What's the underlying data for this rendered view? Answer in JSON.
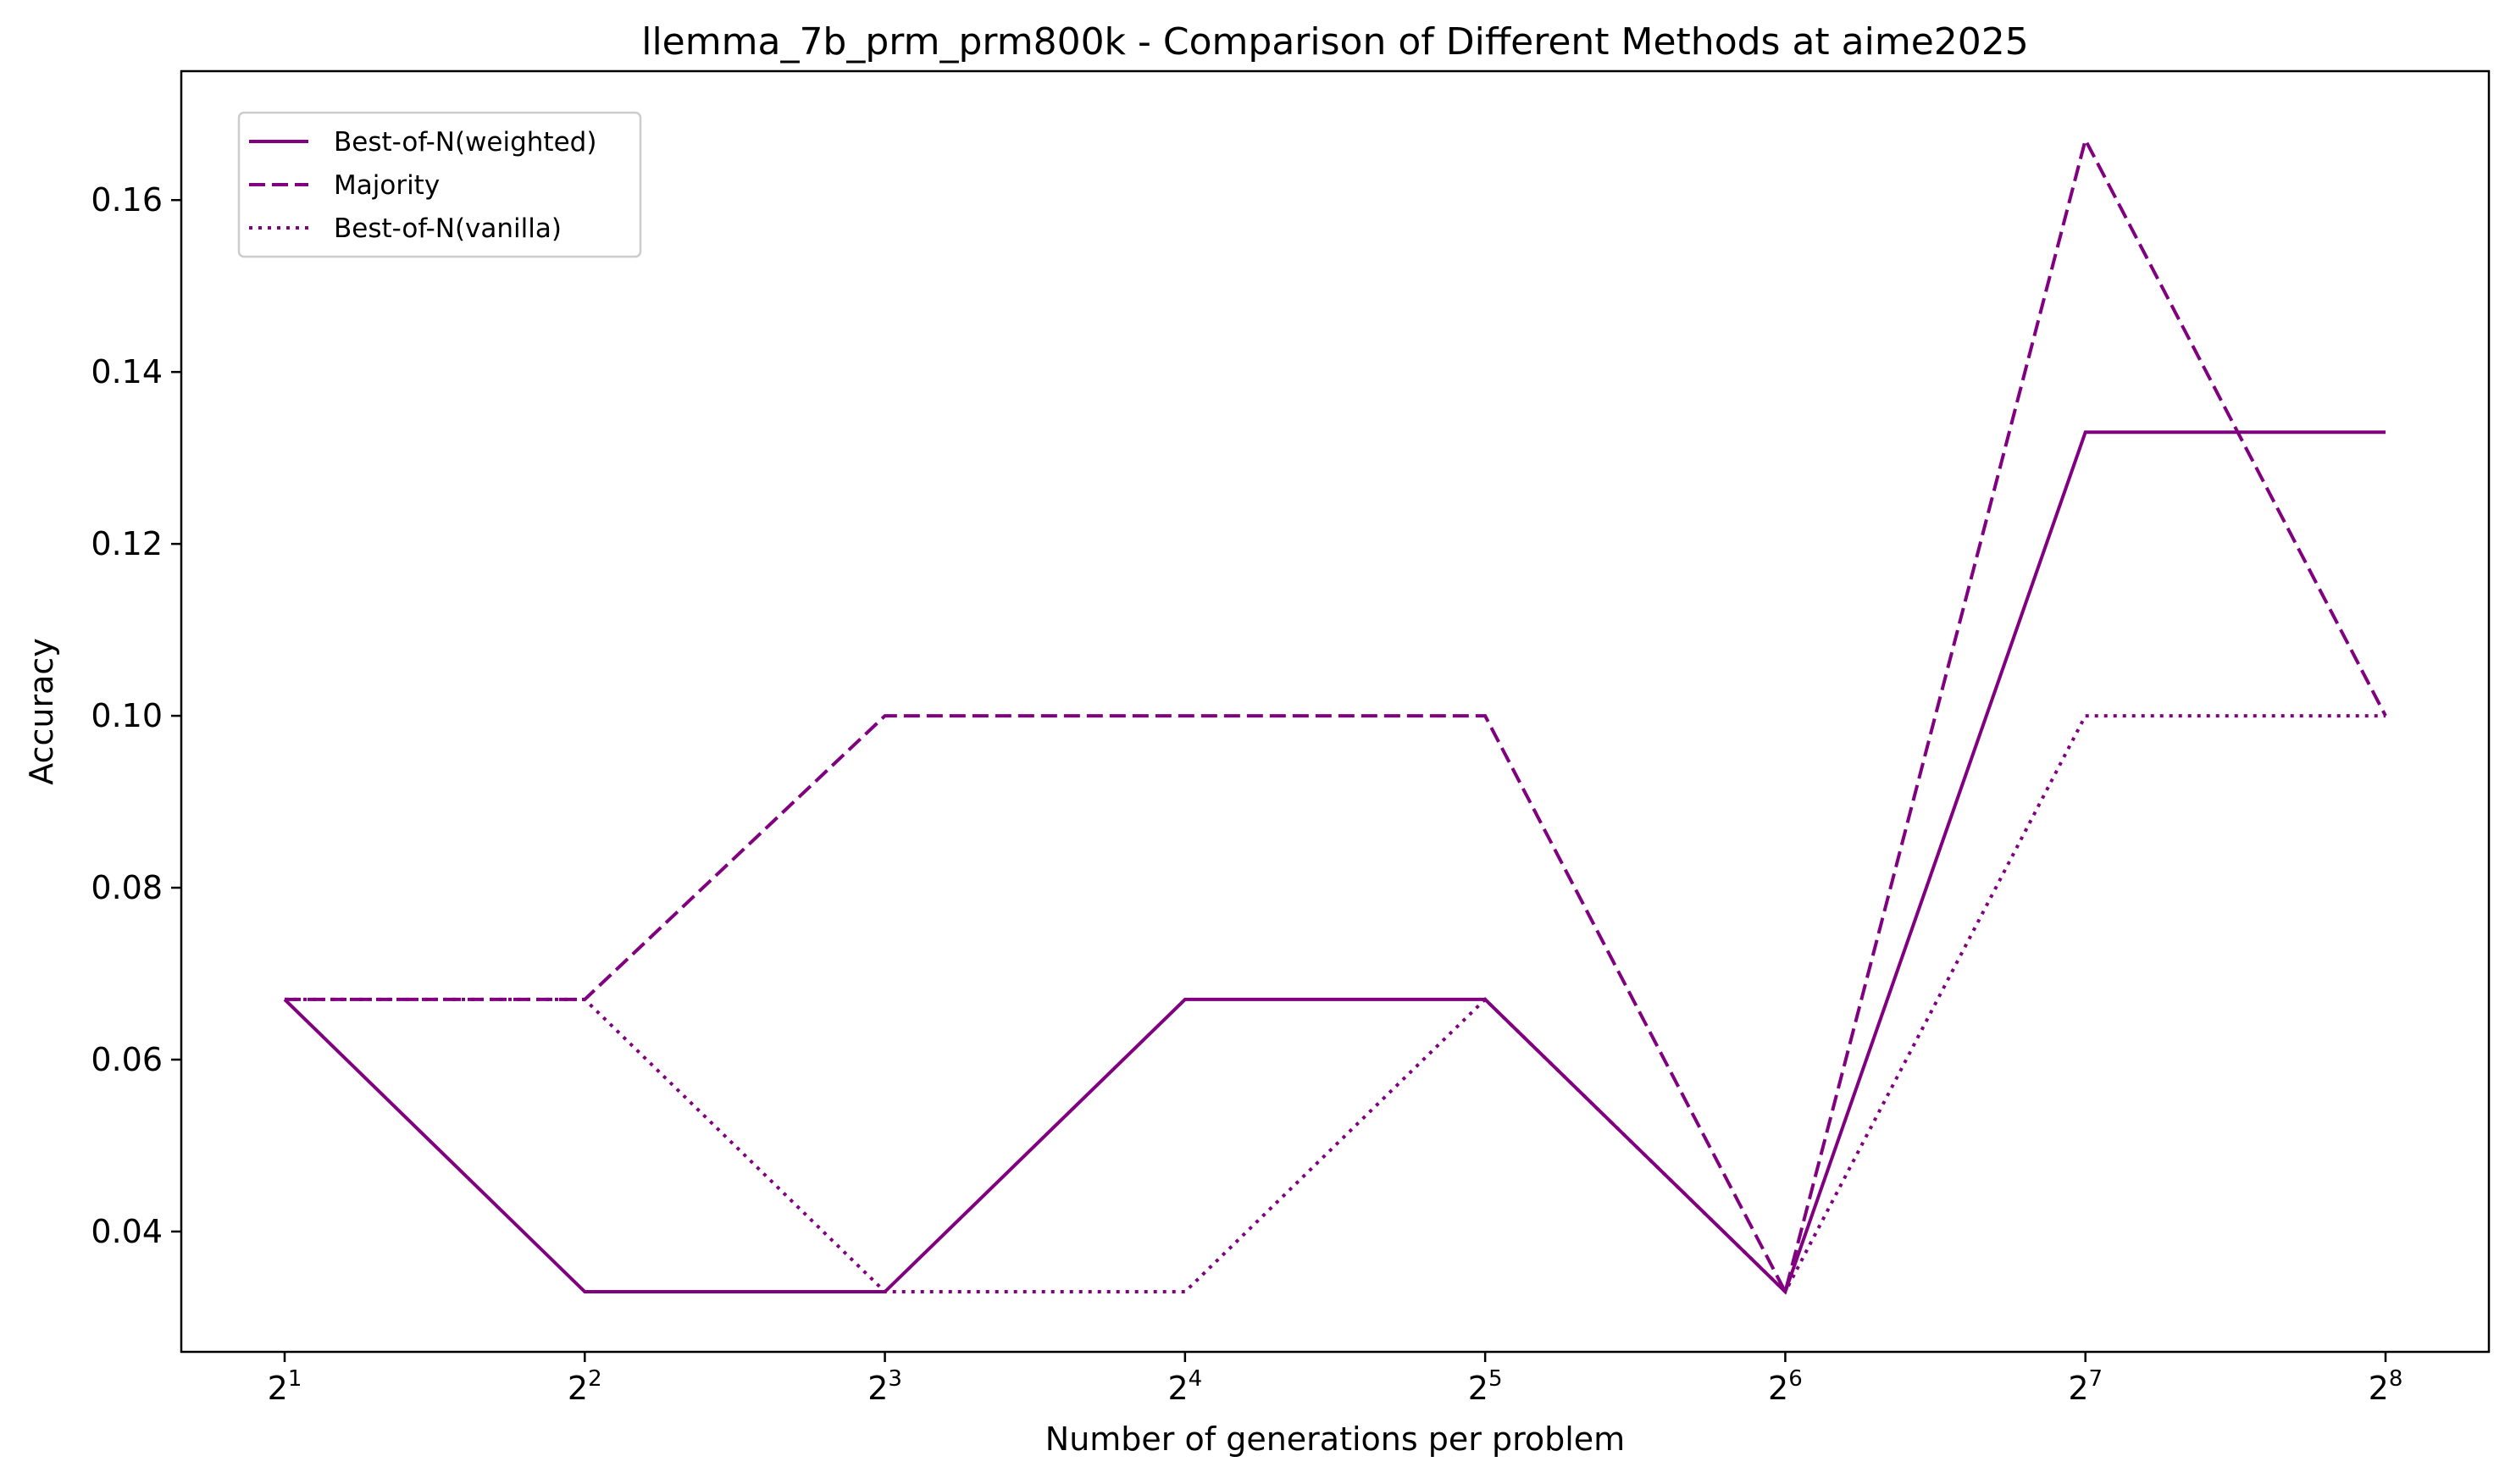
{
  "chart_data": {
    "type": "line",
    "title": "llemma_7b_prm_prm800k - Comparison of Different Methods at aime2025",
    "xlabel": "Number of generations per problem",
    "ylabel": "Accuracy",
    "x_scale": "log2",
    "x": [
      2,
      4,
      8,
      16,
      32,
      64,
      128,
      256
    ],
    "x_tick_base": "2",
    "x_tick_exponents": [
      "1",
      "2",
      "3",
      "4",
      "5",
      "6",
      "7",
      "8"
    ],
    "y_ticks": [
      "0.04",
      "0.06",
      "0.08",
      "0.10",
      "0.12",
      "0.14",
      "0.16"
    ],
    "y_tick_values": [
      0.04,
      0.06,
      0.08,
      0.1,
      0.12,
      0.14,
      0.16
    ],
    "ylim": [
      0.026,
      0.175
    ],
    "grid": false,
    "legend_position": "top-left",
    "color": "#800080",
    "series": [
      {
        "name": "Best-of-N(weighted)",
        "style": "solid",
        "values": [
          0.067,
          0.033,
          0.033,
          0.067,
          0.067,
          0.033,
          0.133,
          0.133
        ]
      },
      {
        "name": "Majority",
        "style": "dashed",
        "values": [
          0.067,
          0.067,
          0.1,
          0.1,
          0.1,
          0.033,
          0.167,
          0.1
        ]
      },
      {
        "name": "Best-of-N(vanilla)",
        "style": "dotted",
        "values": [
          0.067,
          0.067,
          0.033,
          0.033,
          0.067,
          0.033,
          0.1,
          0.1
        ]
      }
    ]
  }
}
